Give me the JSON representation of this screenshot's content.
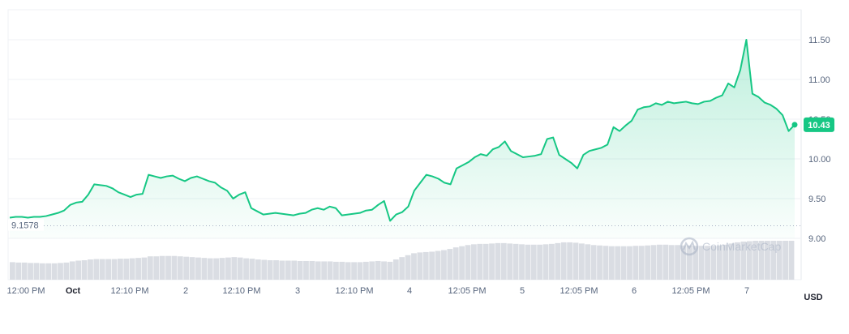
{
  "chart_data": {
    "type": "area",
    "currency_label": "USD",
    "baseline_label": "9.1578",
    "baseline_value": 9.1578,
    "current_price_label": "10.43",
    "current_price": 10.43,
    "watermark": "CoinMarketCap",
    "ylim": [
      9.0,
      11.75
    ],
    "y_ticks": [
      "11.50",
      "11.00",
      "10.50",
      "10.00",
      "9.50",
      "9.00"
    ],
    "x_ticks": [
      {
        "label": "12:00 PM",
        "bold": false
      },
      {
        "label": "Oct",
        "bold": true
      },
      {
        "label": "12:10 PM",
        "bold": false
      },
      {
        "label": "2",
        "bold": false
      },
      {
        "label": "12:10 PM",
        "bold": false
      },
      {
        "label": "3",
        "bold": false
      },
      {
        "label": "12:10 PM",
        "bold": false
      },
      {
        "label": "4",
        "bold": false
      },
      {
        "label": "12:05 PM",
        "bold": false
      },
      {
        "label": "5",
        "bold": false
      },
      {
        "label": "12:05 PM",
        "bold": false
      },
      {
        "label": "6",
        "bold": false
      },
      {
        "label": "12:05 PM",
        "bold": false
      },
      {
        "label": "7",
        "bold": false
      }
    ],
    "price_series": [
      9.26,
      9.27,
      9.27,
      9.26,
      9.27,
      9.27,
      9.28,
      9.3,
      9.32,
      9.35,
      9.42,
      9.45,
      9.46,
      9.55,
      9.68,
      9.67,
      9.66,
      9.63,
      9.58,
      9.55,
      9.52,
      9.55,
      9.56,
      9.8,
      9.78,
      9.76,
      9.78,
      9.79,
      9.75,
      9.72,
      9.76,
      9.78,
      9.75,
      9.72,
      9.7,
      9.64,
      9.6,
      9.5,
      9.55,
      9.58,
      9.38,
      9.34,
      9.3,
      9.31,
      9.32,
      9.31,
      9.3,
      9.29,
      9.31,
      9.32,
      9.36,
      9.38,
      9.36,
      9.4,
      9.38,
      9.29,
      9.3,
      9.31,
      9.32,
      9.35,
      9.36,
      9.42,
      9.47,
      9.22,
      9.3,
      9.33,
      9.4,
      9.6,
      9.7,
      9.8,
      9.78,
      9.75,
      9.7,
      9.68,
      9.88,
      9.92,
      9.96,
      10.02,
      10.06,
      10.04,
      10.12,
      10.15,
      10.22,
      10.1,
      10.06,
      10.02,
      10.03,
      10.04,
      10.06,
      10.25,
      10.27,
      10.05,
      10.0,
      9.95,
      9.88,
      10.05,
      10.1,
      10.12,
      10.14,
      10.18,
      10.4,
      10.35,
      10.42,
      10.48,
      10.62,
      10.65,
      10.66,
      10.7,
      10.68,
      10.72,
      10.7,
      10.71,
      10.72,
      10.7,
      10.69,
      10.72,
      10.73,
      10.77,
      10.8,
      10.95,
      10.9,
      11.12,
      11.5,
      10.82,
      10.78,
      10.71,
      10.68,
      10.63,
      10.55,
      10.35,
      10.43
    ],
    "volume_series": [
      0.45,
      0.44,
      0.44,
      0.43,
      0.43,
      0.42,
      0.42,
      0.42,
      0.43,
      0.44,
      0.47,
      0.49,
      0.5,
      0.52,
      0.53,
      0.53,
      0.53,
      0.53,
      0.54,
      0.54,
      0.55,
      0.56,
      0.57,
      0.6,
      0.6,
      0.61,
      0.61,
      0.61,
      0.6,
      0.59,
      0.58,
      0.57,
      0.56,
      0.55,
      0.55,
      0.56,
      0.57,
      0.58,
      0.57,
      0.55,
      0.54,
      0.52,
      0.51,
      0.5,
      0.5,
      0.49,
      0.49,
      0.49,
      0.48,
      0.48,
      0.48,
      0.47,
      0.47,
      0.47,
      0.46,
      0.46,
      0.45,
      0.45,
      0.45,
      0.46,
      0.47,
      0.48,
      0.47,
      0.46,
      0.52,
      0.58,
      0.63,
      0.68,
      0.7,
      0.71,
      0.72,
      0.74,
      0.76,
      0.79,
      0.83,
      0.86,
      0.89,
      0.91,
      0.92,
      0.92,
      0.93,
      0.94,
      0.94,
      0.93,
      0.92,
      0.91,
      0.9,
      0.9,
      0.9,
      0.91,
      0.92,
      0.94,
      0.96,
      0.96,
      0.95,
      0.93,
      0.91,
      0.89,
      0.88,
      0.87,
      0.86,
      0.86,
      0.86,
      0.86,
      0.87,
      0.87,
      0.88,
      0.89,
      0.9,
      0.9,
      0.89,
      0.89,
      0.88,
      0.88,
      0.87,
      0.87,
      0.87,
      0.87,
      0.88,
      0.9,
      0.93,
      0.96,
      0.98,
      0.99,
      1.0,
      1.0,
      1.0,
      1.0,
      1.0,
      1.0,
      1.0
    ],
    "colors": {
      "line": "#16c784",
      "fill_top": "#16c784",
      "volume": "#dadde3",
      "baseline": "#a6b0c3",
      "price_badge": "#16c784",
      "axis_text": "#58667e"
    }
  }
}
